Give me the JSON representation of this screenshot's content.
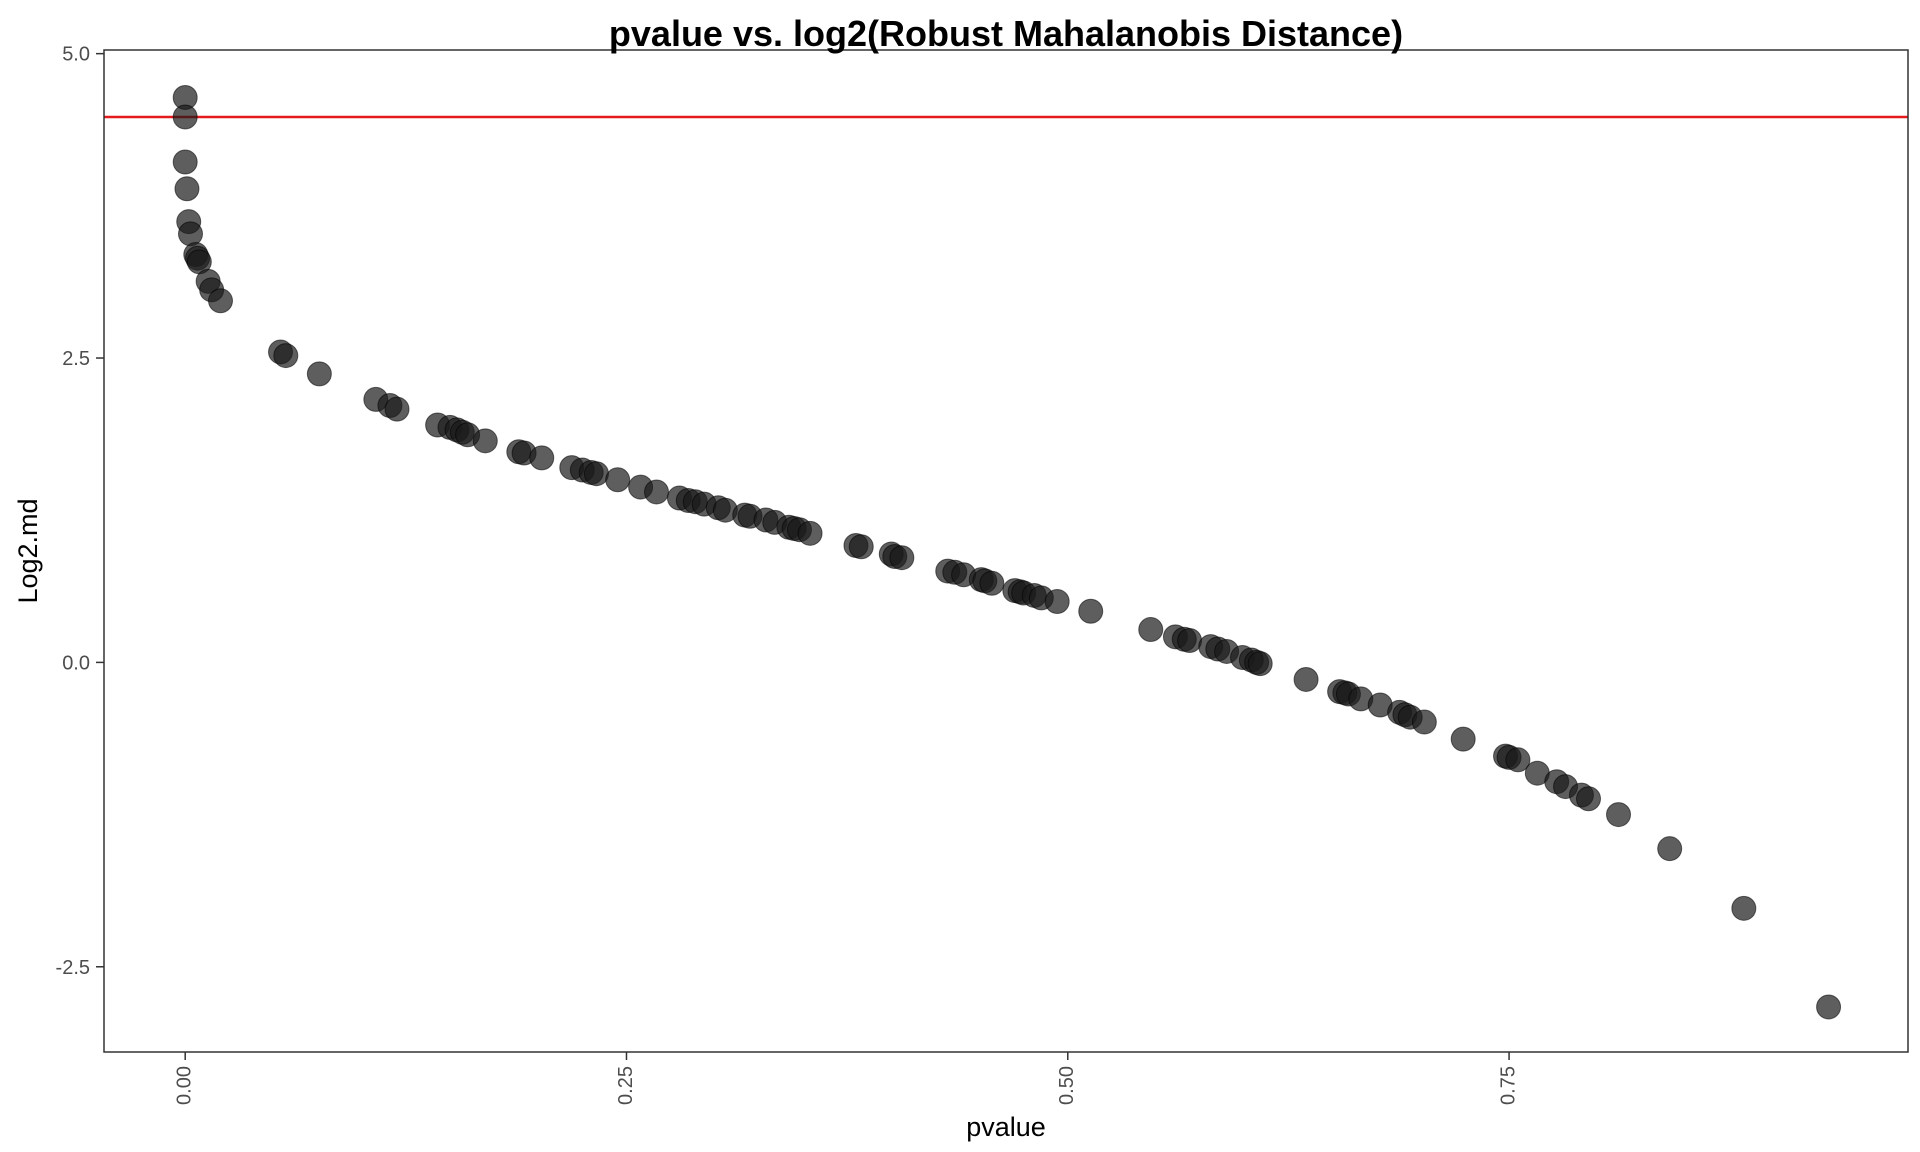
{
  "chart_data": {
    "type": "scatter",
    "title": "pvalue vs. log2(Robust Mahalanobis Distance)",
    "xlabel": "pvalue",
    "ylabel": "Log2.md",
    "xlim": [
      -0.046,
      0.976
    ],
    "ylim": [
      -3.2,
      5.03
    ],
    "x_ticks": [
      0.0,
      0.25,
      0.5,
      0.75
    ],
    "x_tick_labels": [
      "0.00",
      "0.25",
      "0.50",
      "0.75"
    ],
    "y_ticks": [
      -2.5,
      0.0,
      2.5,
      5.0
    ],
    "y_tick_labels": [
      "-2.5",
      "0.0",
      "2.5",
      "5.0"
    ],
    "grid": false,
    "legend": "none",
    "reference_line": {
      "orientation": "horizontal",
      "y": 4.48,
      "color": "#e41a1c"
    },
    "point_color": "#1a1a1a",
    "point_opacity": 0.7,
    "points": [
      {
        "x": 0.0,
        "y": 4.64
      },
      {
        "x": 0.0,
        "y": 4.48
      },
      {
        "x": 0.0,
        "y": 4.11
      },
      {
        "x": 0.001,
        "y": 3.89
      },
      {
        "x": 0.002,
        "y": 3.62
      },
      {
        "x": 0.003,
        "y": 3.52
      },
      {
        "x": 0.006,
        "y": 3.35
      },
      {
        "x": 0.007,
        "y": 3.32
      },
      {
        "x": 0.008,
        "y": 3.29
      },
      {
        "x": 0.013,
        "y": 3.13
      },
      {
        "x": 0.015,
        "y": 3.06
      },
      {
        "x": 0.02,
        "y": 2.97
      },
      {
        "x": 0.054,
        "y": 2.55
      },
      {
        "x": 0.057,
        "y": 2.52
      },
      {
        "x": 0.076,
        "y": 2.37
      },
      {
        "x": 0.108,
        "y": 2.16
      },
      {
        "x": 0.116,
        "y": 2.11
      },
      {
        "x": 0.12,
        "y": 2.08
      },
      {
        "x": 0.143,
        "y": 1.95
      },
      {
        "x": 0.15,
        "y": 1.93
      },
      {
        "x": 0.154,
        "y": 1.91
      },
      {
        "x": 0.157,
        "y": 1.89
      },
      {
        "x": 0.16,
        "y": 1.87
      },
      {
        "x": 0.17,
        "y": 1.82
      },
      {
        "x": 0.189,
        "y": 1.73
      },
      {
        "x": 0.192,
        "y": 1.72
      },
      {
        "x": 0.202,
        "y": 1.68
      },
      {
        "x": 0.219,
        "y": 1.6
      },
      {
        "x": 0.225,
        "y": 1.58
      },
      {
        "x": 0.23,
        "y": 1.56
      },
      {
        "x": 0.233,
        "y": 1.55
      },
      {
        "x": 0.245,
        "y": 1.5
      },
      {
        "x": 0.258,
        "y": 1.44
      },
      {
        "x": 0.267,
        "y": 1.4
      },
      {
        "x": 0.28,
        "y": 1.35
      },
      {
        "x": 0.285,
        "y": 1.33
      },
      {
        "x": 0.289,
        "y": 1.32
      },
      {
        "x": 0.294,
        "y": 1.3
      },
      {
        "x": 0.302,
        "y": 1.27
      },
      {
        "x": 0.306,
        "y": 1.25
      },
      {
        "x": 0.317,
        "y": 1.21
      },
      {
        "x": 0.32,
        "y": 1.2
      },
      {
        "x": 0.329,
        "y": 1.17
      },
      {
        "x": 0.334,
        "y": 1.15
      },
      {
        "x": 0.342,
        "y": 1.11
      },
      {
        "x": 0.345,
        "y": 1.1
      },
      {
        "x": 0.348,
        "y": 1.09
      },
      {
        "x": 0.354,
        "y": 1.06
      },
      {
        "x": 0.38,
        "y": 0.96
      },
      {
        "x": 0.383,
        "y": 0.95
      },
      {
        "x": 0.4,
        "y": 0.89
      },
      {
        "x": 0.402,
        "y": 0.87
      },
      {
        "x": 0.406,
        "y": 0.86
      },
      {
        "x": 0.432,
        "y": 0.75
      },
      {
        "x": 0.436,
        "y": 0.74
      },
      {
        "x": 0.441,
        "y": 0.72
      },
      {
        "x": 0.451,
        "y": 0.68
      },
      {
        "x": 0.453,
        "y": 0.67
      },
      {
        "x": 0.457,
        "y": 0.65
      },
      {
        "x": 0.47,
        "y": 0.59
      },
      {
        "x": 0.473,
        "y": 0.58
      },
      {
        "x": 0.475,
        "y": 0.57
      },
      {
        "x": 0.481,
        "y": 0.55
      },
      {
        "x": 0.485,
        "y": 0.53
      },
      {
        "x": 0.494,
        "y": 0.5
      },
      {
        "x": 0.513,
        "y": 0.42
      },
      {
        "x": 0.547,
        "y": 0.27
      },
      {
        "x": 0.561,
        "y": 0.21
      },
      {
        "x": 0.566,
        "y": 0.19
      },
      {
        "x": 0.569,
        "y": 0.18
      },
      {
        "x": 0.581,
        "y": 0.13
      },
      {
        "x": 0.585,
        "y": 0.11
      },
      {
        "x": 0.59,
        "y": 0.09
      },
      {
        "x": 0.599,
        "y": 0.04
      },
      {
        "x": 0.604,
        "y": 0.02
      },
      {
        "x": 0.607,
        "y": 0.0
      },
      {
        "x": 0.609,
        "y": -0.01
      },
      {
        "x": 0.635,
        "y": -0.14
      },
      {
        "x": 0.654,
        "y": -0.24
      },
      {
        "x": 0.657,
        "y": -0.25
      },
      {
        "x": 0.659,
        "y": -0.26
      },
      {
        "x": 0.666,
        "y": -0.3
      },
      {
        "x": 0.677,
        "y": -0.35
      },
      {
        "x": 0.688,
        "y": -0.41
      },
      {
        "x": 0.691,
        "y": -0.43
      },
      {
        "x": 0.694,
        "y": -0.45
      },
      {
        "x": 0.702,
        "y": -0.49
      },
      {
        "x": 0.724,
        "y": -0.63
      },
      {
        "x": 0.748,
        "y": -0.77
      },
      {
        "x": 0.75,
        "y": -0.78
      },
      {
        "x": 0.755,
        "y": -0.8
      },
      {
        "x": 0.766,
        "y": -0.91
      },
      {
        "x": 0.777,
        "y": -0.98
      },
      {
        "x": 0.782,
        "y": -1.02
      },
      {
        "x": 0.791,
        "y": -1.09
      },
      {
        "x": 0.795,
        "y": -1.12
      },
      {
        "x": 0.812,
        "y": -1.25
      },
      {
        "x": 0.841,
        "y": -1.53
      },
      {
        "x": 0.883,
        "y": -2.02
      },
      {
        "x": 0.931,
        "y": -2.83
      }
    ]
  }
}
